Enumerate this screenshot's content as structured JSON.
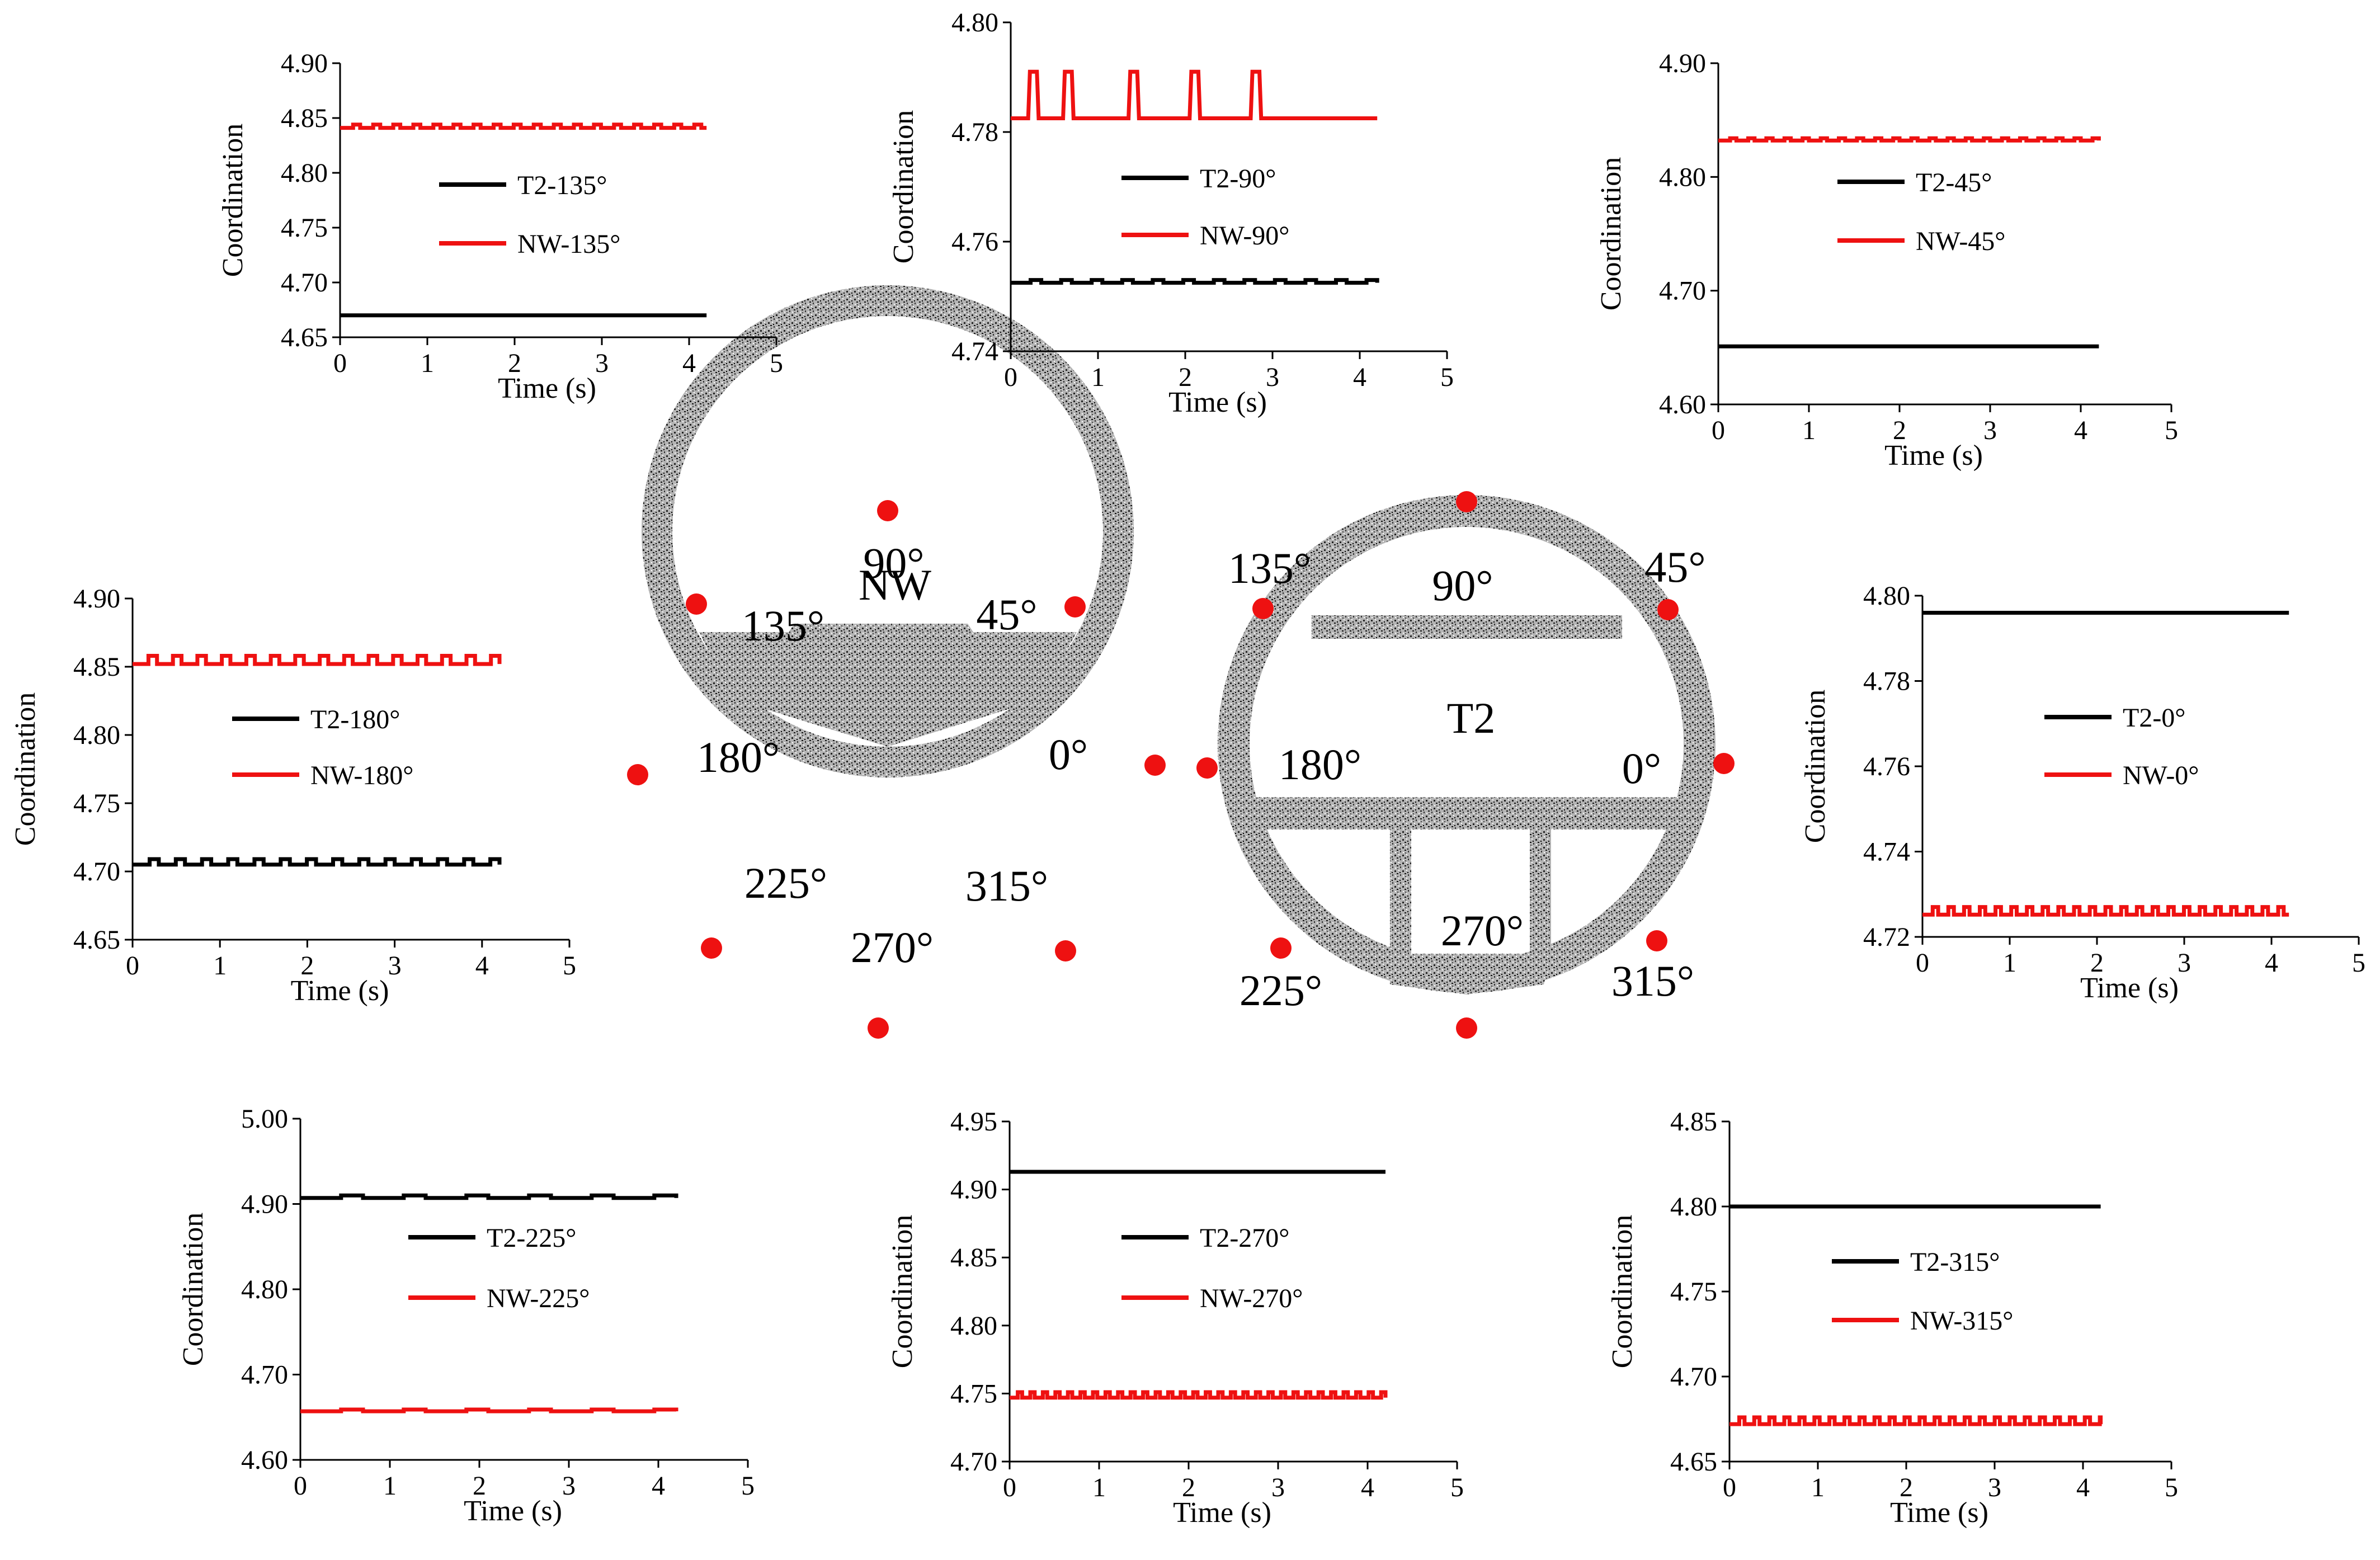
{
  "colors": {
    "t2": "#000000",
    "nw": "#ee1111",
    "point": "#ee1111",
    "concrete": "#999999"
  },
  "chart_data": [
    {
      "type": "line",
      "id": "135",
      "xlabel": "Time (s)",
      "ylabel": "Coordination",
      "xlim": [
        0,
        5
      ],
      "ylim": [
        4.65,
        4.9
      ],
      "xticks": [
        "0",
        "1",
        "2",
        "3",
        "4",
        "5"
      ],
      "yticks": [
        "4.65",
        "4.70",
        "4.75",
        "4.80",
        "4.85",
        "4.90"
      ],
      "legend_position": "center",
      "series": [
        {
          "name": "T2-135°",
          "color": "#000000",
          "x": [
            0,
            4.2
          ],
          "y": [
            4.67,
            4.67
          ]
        },
        {
          "name": "NW-135°",
          "color": "#ee1111",
          "x": [
            0,
            4.2
          ],
          "y": [
            4.841,
            4.841
          ],
          "ripple": 0.003,
          "ripple_period": 0.23
        }
      ]
    },
    {
      "type": "line",
      "id": "90",
      "xlabel": "Time (s)",
      "ylabel": "Coordination",
      "xlim": [
        0,
        5
      ],
      "ylim": [
        4.74,
        4.8
      ],
      "xticks": [
        "0",
        "1",
        "2",
        "3",
        "4",
        "5"
      ],
      "yticks": [
        "4.74",
        "4.76",
        "4.78",
        "4.80"
      ],
      "legend_position": "center",
      "series": [
        {
          "name": "T2-90°",
          "color": "#000000",
          "x": [
            0,
            4.2
          ],
          "y": [
            4.7525,
            4.7525
          ],
          "ripple": 0.0005,
          "ripple_period": 0.35
        },
        {
          "name": "NW-90°",
          "color": "#ee1111",
          "x": [
            0,
            4.2
          ],
          "y": [
            4.7825,
            4.7825
          ],
          "spikes_at": [
            0.2,
            0.6,
            1.35,
            2.05,
            2.75
          ],
          "spike_to": 4.791,
          "spike_width": 0.1
        }
      ]
    },
    {
      "type": "line",
      "id": "45",
      "xlabel": "Time (s)",
      "ylabel": "Coordination",
      "xlim": [
        0,
        5
      ],
      "ylim": [
        4.6,
        4.9
      ],
      "xticks": [
        "0",
        "1",
        "2",
        "3",
        "4",
        "5"
      ],
      "yticks": [
        "4.60",
        "4.70",
        "4.80",
        "4.90"
      ],
      "legend_position": "center",
      "series": [
        {
          "name": "T2-45°",
          "color": "#000000",
          "x": [
            0,
            4.2
          ],
          "y": [
            4.651,
            4.651
          ]
        },
        {
          "name": "NW-45°",
          "color": "#ee1111",
          "x": [
            0,
            4.2
          ],
          "y": [
            4.832,
            4.832
          ],
          "ripple": 0.002,
          "ripple_period": 0.2
        }
      ]
    },
    {
      "type": "line",
      "id": "180",
      "xlabel": "Time (s)",
      "ylabel": "Coordination",
      "xlim": [
        0,
        5
      ],
      "ylim": [
        4.65,
        4.9
      ],
      "xticks": [
        "0",
        "1",
        "2",
        "3",
        "4",
        "5"
      ],
      "yticks": [
        "4.65",
        "4.70",
        "4.75",
        "4.80",
        "4.85",
        "4.90"
      ],
      "legend_position": "center",
      "series": [
        {
          "name": "T2-180°",
          "color": "#000000",
          "x": [
            0,
            4.2
          ],
          "y": [
            4.705,
            4.705
          ],
          "ripple": 0.004,
          "ripple_period": 0.3
        },
        {
          "name": "NW-180°",
          "color": "#ee1111",
          "x": [
            0,
            4.2
          ],
          "y": [
            4.852,
            4.852
          ],
          "ripple": 0.006,
          "ripple_period": 0.28
        }
      ]
    },
    {
      "type": "line",
      "id": "0",
      "xlabel": "Time (s)",
      "ylabel": "Coordination",
      "xlim": [
        0,
        5
      ],
      "ylim": [
        4.72,
        4.8
      ],
      "xticks": [
        "0",
        "1",
        "2",
        "3",
        "4",
        "5"
      ],
      "yticks": [
        "4.72",
        "4.74",
        "4.76",
        "4.78",
        "4.80"
      ],
      "legend_position": "center",
      "series": [
        {
          "name": "T2-0°",
          "color": "#000000",
          "x": [
            0,
            4.2
          ],
          "y": [
            4.796,
            4.796
          ]
        },
        {
          "name": "NW-0°",
          "color": "#ee1111",
          "x": [
            0,
            4.2
          ],
          "y": [
            4.7252,
            4.7252
          ],
          "ripple": 0.0018,
          "ripple_period": 0.18
        }
      ]
    },
    {
      "type": "line",
      "id": "225",
      "xlabel": "Time (s)",
      "ylabel": "Coordination",
      "xlim": [
        0,
        5
      ],
      "ylim": [
        4.6,
        5.0
      ],
      "xticks": [
        "0",
        "1",
        "2",
        "3",
        "4",
        "5"
      ],
      "yticks": [
        "4.60",
        "4.70",
        "4.80",
        "4.90",
        "5.00"
      ],
      "legend_position": "center",
      "series": [
        {
          "name": "T2-225°",
          "color": "#000000",
          "x": [
            0,
            4.2
          ],
          "y": [
            4.907,
            4.907
          ],
          "ripple": 0.003,
          "ripple_period": 0.7
        },
        {
          "name": "NW-225°",
          "color": "#ee1111",
          "x": [
            0,
            4.2
          ],
          "y": [
            4.657,
            4.657
          ],
          "ripple": 0.002,
          "ripple_period": 0.7
        }
      ]
    },
    {
      "type": "line",
      "id": "270",
      "xlabel": "Time (s)",
      "ylabel": "Coordination",
      "xlim": [
        0,
        5
      ],
      "ylim": [
        4.7,
        4.95
      ],
      "xticks": [
        "0",
        "1",
        "2",
        "3",
        "4",
        "5"
      ],
      "yticks": [
        "4.70",
        "4.75",
        "4.80",
        "4.85",
        "4.90",
        "4.95"
      ],
      "legend_position": "center",
      "series": [
        {
          "name": "T2-270°",
          "color": "#000000",
          "x": [
            0,
            4.2
          ],
          "y": [
            4.913,
            4.913
          ]
        },
        {
          "name": "NW-270°",
          "color": "#ee1111",
          "x": [
            0,
            4.2
          ],
          "y": [
            4.747,
            4.747
          ],
          "ripple": 0.004,
          "ripple_period": 0.14
        }
      ]
    },
    {
      "type": "line",
      "id": "315",
      "xlabel": "Time (s)",
      "ylabel": "Coordination",
      "xlim": [
        0,
        5
      ],
      "ylim": [
        4.65,
        4.85
      ],
      "xticks": [
        "0",
        "1",
        "2",
        "3",
        "4",
        "5"
      ],
      "yticks": [
        "4.65",
        "4.70",
        "4.75",
        "4.80",
        "4.85"
      ],
      "legend_position": "center",
      "series": [
        {
          "name": "T2-315°",
          "color": "#000000",
          "x": [
            0,
            4.2
          ],
          "y": [
            4.8,
            4.8
          ]
        },
        {
          "name": "NW-315°",
          "color": "#ee1111",
          "x": [
            0,
            4.2
          ],
          "y": [
            4.672,
            4.672
          ],
          "ripple": 0.004,
          "ripple_period": 0.17
        }
      ]
    }
  ],
  "diagrams": {
    "nw": {
      "name": "NW",
      "angle_labels": [
        "90°",
        "45°",
        "0°",
        "315°",
        "270°",
        "225°",
        "180°",
        "135°"
      ]
    },
    "t2": {
      "name": "T2",
      "angle_labels": [
        "90°",
        "45°",
        "0°",
        "315°",
        "270°",
        "225°",
        "180°",
        "135°"
      ]
    }
  }
}
